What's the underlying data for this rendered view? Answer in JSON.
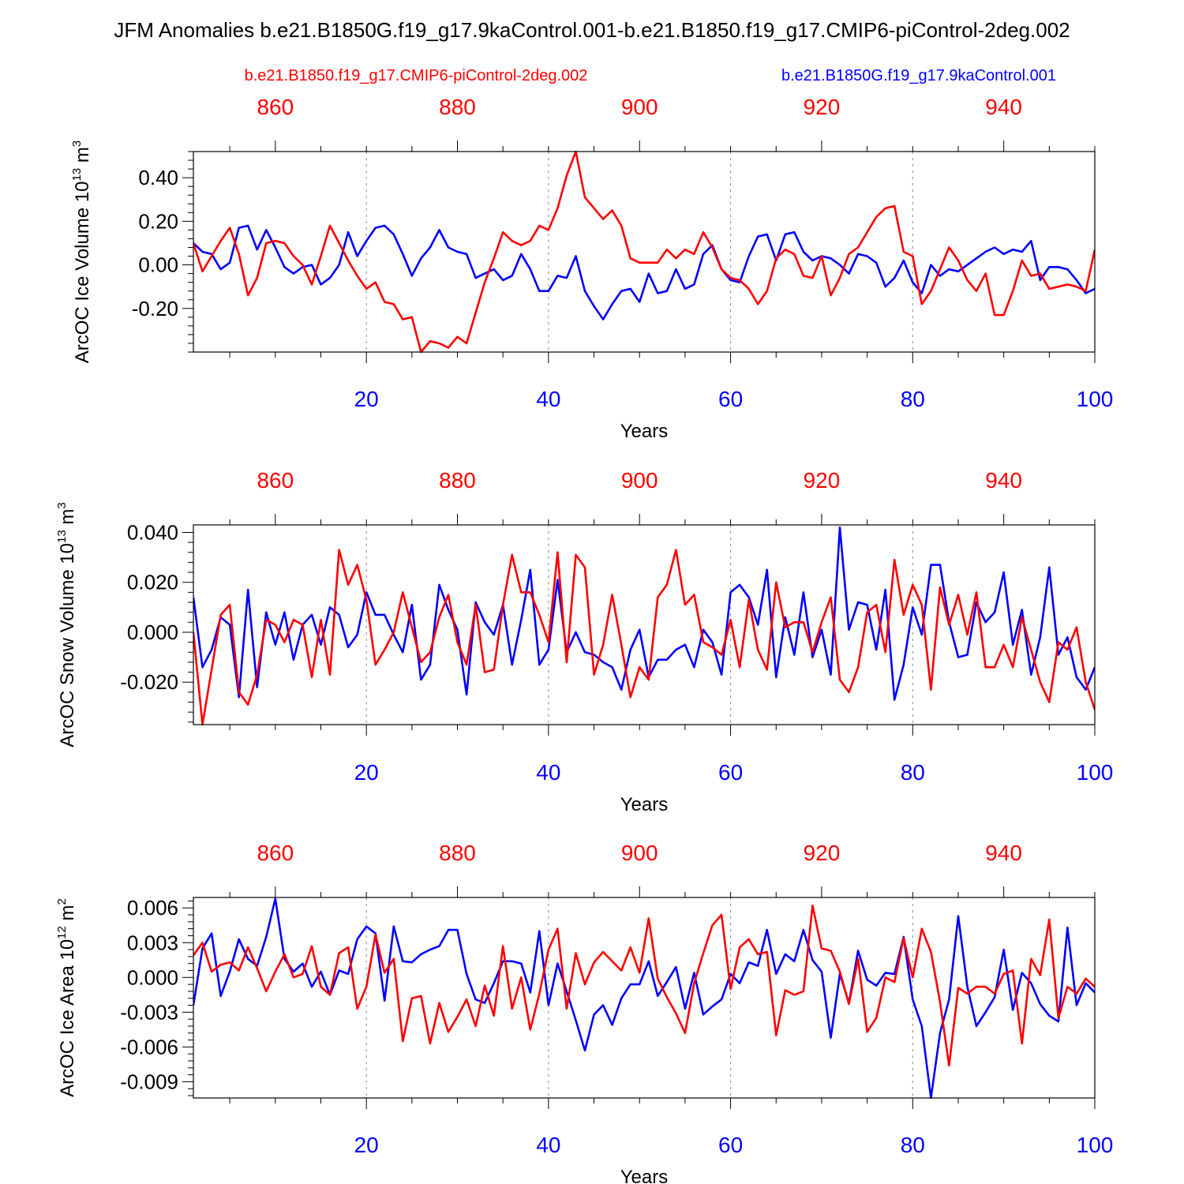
{
  "title": "JFM Anomalies b.e21.B1850G.f19_g17.9kaControl.001-b.e21.B1850.f19_g17.CMIP6-piControl-2deg.002",
  "legend": {
    "red_label": "b.e21.B1850.f19_g17.CMIP6-piControl-2deg.002",
    "blue_label": "b.e21.B1850G.f19_g17.9kaControl.001"
  },
  "colors": {
    "red": "#ff0000",
    "blue": "#0000ff",
    "axis": "#000000",
    "grid": "#888888"
  },
  "chart_data": [
    {
      "type": "line",
      "ylabel": "ArcOC Ice Volume 10",
      "ylabel_exp": "13",
      "ylabel_unit": " m",
      "ylabel_unit_exp": "3",
      "xlabel": "Years",
      "ylim": [
        -0.4,
        0.52
      ],
      "yticks": [
        -0.2,
        0.0,
        0.2,
        0.4
      ],
      "ytick_labels": [
        "-0.20",
        "0.00",
        "0.20",
        "0.40"
      ],
      "ytick_minor_step": 0.04,
      "xlim": [
        1,
        100
      ],
      "xticks": [
        20,
        40,
        60,
        80,
        100
      ],
      "xtick_labels": [
        "20",
        "40",
        "60",
        "80",
        "100"
      ],
      "top_xticks": [
        860,
        880,
        900,
        920,
        940
      ],
      "top_xtick_labels": [
        "860",
        "880",
        "900",
        "920",
        "940"
      ],
      "top_offset": 851,
      "series": [
        {
          "name": "b.e21.B1850G.f19_g17.9kaControl.001",
          "color": "blue",
          "values": [
            0.1,
            0.06,
            0.05,
            -0.02,
            0.01,
            0.17,
            0.18,
            0.07,
            0.16,
            0.08,
            -0.01,
            -0.04,
            -0.01,
            0.0,
            -0.09,
            -0.06,
            0.0,
            0.15,
            0.04,
            0.11,
            0.17,
            0.18,
            0.14,
            0.05,
            -0.05,
            0.03,
            0.08,
            0.16,
            0.08,
            0.06,
            0.05,
            -0.06,
            -0.04,
            -0.02,
            -0.07,
            -0.05,
            0.05,
            -0.02,
            -0.12,
            -0.12,
            -0.05,
            -0.06,
            0.04,
            -0.12,
            -0.19,
            -0.25,
            -0.18,
            -0.12,
            -0.11,
            -0.17,
            -0.04,
            -0.13,
            -0.12,
            -0.02,
            -0.11,
            -0.09,
            0.05,
            0.09,
            -0.02,
            -0.07,
            -0.08,
            0.04,
            0.13,
            0.14,
            0.02,
            0.14,
            0.15,
            0.06,
            0.02,
            0.04,
            0.03,
            0.0,
            -0.04,
            0.05,
            0.04,
            0.01,
            -0.1,
            -0.06,
            0.02,
            -0.08,
            -0.13,
            0.0,
            -0.05,
            -0.02,
            -0.03,
            0.0,
            0.03,
            0.06,
            0.08,
            0.05,
            0.07,
            0.06,
            0.11,
            -0.07,
            -0.01,
            -0.01,
            -0.02,
            -0.07,
            -0.13,
            -0.11
          ]
        },
        {
          "name": "b.e21.B1850.f19_g17.CMIP6-piControl-2deg.002",
          "color": "red",
          "values": [
            0.1,
            -0.03,
            0.04,
            0.11,
            0.17,
            0.05,
            -0.14,
            -0.06,
            0.1,
            0.11,
            0.1,
            0.04,
            0.0,
            -0.09,
            0.04,
            0.18,
            0.1,
            0.02,
            -0.05,
            -0.11,
            -0.08,
            -0.17,
            -0.18,
            -0.25,
            -0.24,
            -0.4,
            -0.35,
            -0.36,
            -0.38,
            -0.33,
            -0.36,
            -0.22,
            -0.08,
            0.03,
            0.15,
            0.11,
            0.09,
            0.11,
            0.18,
            0.16,
            0.26,
            0.41,
            0.52,
            0.31,
            0.26,
            0.21,
            0.25,
            0.18,
            0.03,
            0.01,
            0.01,
            0.01,
            0.07,
            0.03,
            0.07,
            0.05,
            0.15,
            0.08,
            -0.02,
            -0.06,
            -0.07,
            -0.11,
            -0.18,
            -0.12,
            0.03,
            0.07,
            0.05,
            -0.05,
            -0.06,
            0.04,
            -0.14,
            -0.06,
            0.05,
            0.08,
            0.15,
            0.22,
            0.26,
            0.27,
            0.06,
            0.04,
            -0.18,
            -0.12,
            -0.02,
            0.08,
            0.02,
            -0.07,
            -0.12,
            -0.04,
            -0.23,
            -0.23,
            -0.12,
            0.02,
            -0.05,
            -0.04,
            -0.11,
            -0.1,
            -0.09,
            -0.1,
            -0.12,
            0.07
          ]
        }
      ]
    },
    {
      "type": "line",
      "ylabel": "ArcOC Snow Volume 10",
      "ylabel_exp": "13",
      "ylabel_unit": " m",
      "ylabel_unit_exp": "3",
      "xlabel": "Years",
      "ylim": [
        -0.037,
        0.043
      ],
      "yticks": [
        -0.02,
        0.0,
        0.02,
        0.04
      ],
      "ytick_labels": [
        "-0.020",
        "0.000",
        "0.020",
        "0.040"
      ],
      "ytick_minor_step": 0.004,
      "xlim": [
        1,
        100
      ],
      "xticks": [
        20,
        40,
        60,
        80,
        100
      ],
      "xtick_labels": [
        "20",
        "40",
        "60",
        "80",
        "100"
      ],
      "top_xticks": [
        860,
        880,
        900,
        920,
        940
      ],
      "top_xtick_labels": [
        "860",
        "880",
        "900",
        "920",
        "940"
      ],
      "top_offset": 851,
      "series": [
        {
          "name": "b.e21.B1850G.f19_g17.9kaControl.001",
          "color": "blue",
          "values": [
            0.014,
            -0.014,
            -0.007,
            0.006,
            0.003,
            -0.026,
            0.017,
            -0.022,
            0.008,
            -0.005,
            0.008,
            -0.011,
            0.003,
            0.007,
            -0.005,
            0.01,
            0.007,
            -0.006,
            -0.001,
            0.016,
            0.007,
            0.007,
            -0.001,
            -0.008,
            0.011,
            -0.019,
            -0.013,
            0.019,
            0.009,
            0.001,
            -0.025,
            0.012,
            0.004,
            -0.001,
            0.011,
            -0.013,
            0.005,
            0.025,
            -0.013,
            -0.007,
            0.021,
            -0.008,
            0.0,
            -0.008,
            -0.009,
            -0.012,
            -0.014,
            -0.023,
            -0.007,
            0.001,
            -0.018,
            -0.011,
            -0.011,
            -0.007,
            -0.005,
            -0.014,
            0.001,
            -0.004,
            -0.017,
            0.016,
            0.019,
            0.014,
            0.003,
            0.025,
            -0.018,
            0.006,
            -0.009,
            0.016,
            -0.01,
            0.001,
            -0.017,
            0.042,
            0.001,
            0.012,
            0.011,
            -0.007,
            0.017,
            -0.027,
            -0.013,
            0.01,
            -0.001,
            0.027,
            0.027,
            0.004,
            -0.01,
            -0.009,
            0.012,
            0.004,
            0.008,
            0.024,
            -0.005,
            0.009,
            -0.017,
            -0.002,
            0.026,
            -0.009,
            -0.002,
            -0.018,
            -0.023,
            -0.014
          ]
        },
        {
          "name": "b.e21.B1850.f19_g17.CMIP6-piControl-2deg.002",
          "color": "red",
          "values": [
            0.0,
            -0.037,
            -0.015,
            0.007,
            0.011,
            -0.024,
            -0.029,
            -0.017,
            0.005,
            0.003,
            -0.004,
            0.005,
            0.003,
            -0.018,
            0.005,
            -0.017,
            0.033,
            0.019,
            0.027,
            0.013,
            -0.013,
            -0.007,
            0.0,
            0.016,
            0.002,
            -0.012,
            -0.008,
            0.006,
            0.015,
            -0.004,
            -0.013,
            0.011,
            -0.016,
            -0.015,
            0.011,
            0.031,
            0.016,
            0.016,
            0.007,
            -0.004,
            0.032,
            -0.012,
            0.031,
            0.026,
            -0.017,
            -0.005,
            0.015,
            -0.005,
            -0.026,
            -0.014,
            -0.019,
            0.014,
            0.019,
            0.033,
            0.011,
            0.015,
            -0.004,
            -0.006,
            -0.009,
            0.005,
            -0.014,
            0.013,
            -0.007,
            -0.015,
            0.02,
            0.002,
            0.004,
            0.004,
            -0.008,
            0.004,
            0.014,
            -0.019,
            -0.024,
            -0.014,
            0.008,
            0.011,
            -0.008,
            0.029,
            0.007,
            0.019,
            0.011,
            -0.023,
            0.018,
            0.003,
            0.015,
            -0.001,
            0.016,
            -0.014,
            -0.014,
            -0.005,
            -0.014,
            0.006,
            -0.007,
            -0.02,
            -0.028,
            -0.004,
            -0.007,
            0.002,
            -0.02,
            -0.031
          ]
        }
      ]
    },
    {
      "type": "line",
      "ylabel": "ArcOC Ice Area 10",
      "ylabel_exp": "12",
      "ylabel_unit": " m",
      "ylabel_unit_exp": "2",
      "xlabel": "Years",
      "ylim": [
        -0.0104,
        0.0069
      ],
      "yticks": [
        -0.009,
        -0.006,
        -0.003,
        0.0,
        0.003,
        0.006
      ],
      "ytick_labels": [
        "-0.009",
        "-0.006",
        "-0.003",
        "0.000",
        "0.003",
        "0.006"
      ],
      "ytick_minor_step": 0.0006,
      "xlim": [
        1,
        100
      ],
      "xticks": [
        20,
        40,
        60,
        80,
        100
      ],
      "xtick_labels": [
        "20",
        "40",
        "60",
        "80",
        "100"
      ],
      "top_xticks": [
        860,
        880,
        900,
        920,
        940
      ],
      "top_xtick_labels": [
        "860",
        "880",
        "900",
        "920",
        "940"
      ],
      "top_offset": 851,
      "series": [
        {
          "name": "b.e21.B1850G.f19_g17.9kaControl.001",
          "color": "blue",
          "values": [
            -0.0024,
            0.0025,
            0.0038,
            -0.0016,
            0.0005,
            0.0033,
            0.0016,
            0.001,
            0.0035,
            0.0068,
            0.0016,
            0.0005,
            0.0012,
            -0.0008,
            0.0005,
            -0.0015,
            0.0006,
            0.0003,
            0.0033,
            0.0044,
            0.0038,
            -0.002,
            0.0044,
            0.0014,
            0.0013,
            0.002,
            0.0024,
            0.0027,
            0.0041,
            0.0041,
            0.0003,
            -0.0019,
            -0.0022,
            -0.0005,
            0.0014,
            0.0014,
            0.0012,
            -0.0013,
            0.004,
            -0.0024,
            0.0012,
            -0.0012,
            -0.0037,
            -0.0063,
            -0.0032,
            -0.0024,
            -0.0041,
            -0.0018,
            -0.0006,
            -0.0006,
            0.0014,
            -0.0016,
            -0.0004,
            0.0009,
            -0.0027,
            0.0004,
            -0.0032,
            -0.0025,
            -0.0019,
            0.0003,
            -0.0005,
            0.0013,
            0.001,
            0.0041,
            0.0003,
            0.002,
            0.0014,
            0.0041,
            0.0015,
            0.0005,
            -0.0052,
            0.0003,
            -0.0022,
            0.0023,
            -0.0002,
            -0.0007,
            0.0004,
            0.0003,
            0.0035,
            -0.0019,
            -0.0042,
            -0.0104,
            -0.0048,
            -0.0019,
            0.0053,
            -0.0008,
            -0.0042,
            -0.003,
            -0.0017,
            0.0024,
            -0.0028,
            0.0004,
            -0.0005,
            -0.0023,
            -0.0033,
            -0.0038,
            0.0043,
            -0.0024,
            -0.0005,
            -0.0013
          ]
        },
        {
          "name": "b.e21.B1850.f19_g17.CMIP6-piControl-2deg.002",
          "color": "red",
          "values": [
            0.0019,
            0.003,
            0.0005,
            0.0011,
            0.0013,
            0.0006,
            0.0026,
            0.0008,
            -0.0012,
            0.0005,
            0.002,
            0.0,
            0.0003,
            0.0027,
            -0.0008,
            -0.0015,
            0.0021,
            0.0026,
            -0.0027,
            -0.0008,
            0.0037,
            0.0004,
            0.0016,
            -0.0055,
            -0.0018,
            -0.0016,
            -0.0057,
            -0.0022,
            -0.0047,
            -0.0034,
            -0.0019,
            -0.0042,
            -0.0007,
            -0.0033,
            0.0027,
            -0.0027,
            0.0,
            -0.0045,
            -0.0014,
            0.0024,
            0.0042,
            -0.0027,
            0.0021,
            -0.0006,
            0.0013,
            0.0022,
            0.0014,
            0.0006,
            0.0026,
            0.0004,
            0.0051,
            -0.0001,
            -0.0017,
            -0.0031,
            -0.0048,
            -0.0005,
            0.0021,
            0.0045,
            0.0054,
            -0.001,
            0.0026,
            0.0033,
            0.002,
            0.0022,
            -0.005,
            -0.0011,
            -0.0015,
            -0.0012,
            0.0062,
            0.0025,
            0.0023,
            0.0005,
            -0.0023,
            0.0016,
            -0.0047,
            -0.0035,
            0.0,
            -0.0004,
            0.0034,
            0.0,
            0.0042,
            0.0022,
            -0.0021,
            -0.0076,
            -0.0009,
            -0.0014,
            -0.0008,
            -0.0008,
            -0.0014,
            0.0003,
            0.0006,
            -0.0057,
            0.0016,
            0.0002,
            0.005,
            -0.0035,
            -0.0008,
            -0.0014,
            -0.0001,
            -0.0008
          ]
        }
      ]
    }
  ]
}
